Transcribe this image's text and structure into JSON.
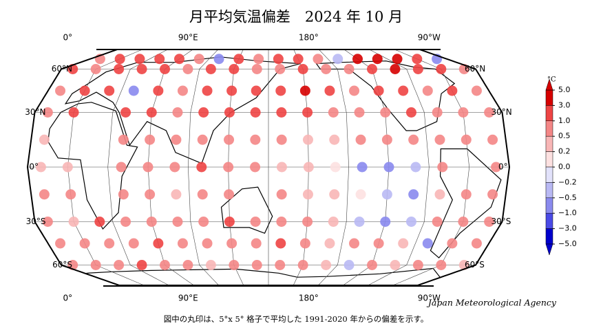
{
  "title": "月平均気温偏差　2024 年 10 月",
  "lon_ticks": [
    {
      "value": 0,
      "label": "0°"
    },
    {
      "value": 90,
      "label": "90°E"
    },
    {
      "value": 180,
      "label": "180°"
    },
    {
      "value": -90,
      "label": "90°W"
    }
  ],
  "lat_ticks": [
    {
      "value": 60,
      "label": "60°N"
    },
    {
      "value": 30,
      "label": "30°N"
    },
    {
      "value": 0,
      "label": "0°"
    },
    {
      "value": -30,
      "label": "30°S"
    },
    {
      "value": -60,
      "label": "60°S"
    }
  ],
  "colorbar": {
    "unit": "°C",
    "ticks": [
      {
        "value": 5,
        "label": "5.0"
      },
      {
        "value": 3,
        "label": "3.0"
      },
      {
        "value": 1,
        "label": "1.0"
      },
      {
        "value": 0.5,
        "label": "0.5"
      },
      {
        "value": 0.2,
        "label": "0.2"
      },
      {
        "value": 0,
        "label": "0.0"
      },
      {
        "value": -0.2,
        "label": "−0.2"
      },
      {
        "value": -0.5,
        "label": "−0.5"
      },
      {
        "value": -1,
        "label": "−1.0"
      },
      {
        "value": -3,
        "label": "−3.0"
      },
      {
        "value": -5,
        "label": "−5.0"
      }
    ],
    "colors": [
      "#d60000",
      "#ee4444",
      "#f48686",
      "#f8b6b6",
      "#fde1e1",
      "#e2e2fb",
      "#b9b9f4",
      "#8a8aee",
      "#4a4ae6",
      "#0000cc"
    ]
  },
  "anomalies": {
    "lats": [
      75,
      60,
      45,
      30,
      15,
      0,
      -15,
      -30,
      -45,
      -60
    ],
    "lons": [
      -20,
      0,
      20,
      40,
      60,
      80,
      100,
      120,
      140,
      160,
      180,
      200,
      220,
      240,
      260,
      280,
      300,
      320
    ],
    "values": [
      [
        0.5,
        1.0,
        1.0,
        1.0,
        1.0,
        0.5,
        -0.5,
        1.0,
        0.5,
        1.0,
        1.0,
        0.5,
        -0.2,
        3.0,
        3.0,
        3.0,
        1.0,
        -0.5
      ],
      [
        1.0,
        0.5,
        1.0,
        1.0,
        1.0,
        0.5,
        1.0,
        1.0,
        0.5,
        0.5,
        1.0,
        0.5,
        0.5,
        1.0,
        3.0,
        1.0,
        1.0,
        0.5
      ],
      [
        0.5,
        1.0,
        1.0,
        -0.5,
        1.0,
        0.5,
        1.0,
        1.0,
        1.0,
        1.0,
        3.0,
        1.0,
        0.5,
        1.0,
        1.0,
        0.5,
        1.0,
        0.5
      ],
      [
        0.5,
        1.0,
        null,
        1.0,
        1.0,
        0.5,
        1.0,
        1.0,
        1.0,
        1.0,
        1.0,
        0.5,
        0.5,
        0.5,
        1.0,
        0.5,
        0.5,
        0.5
      ],
      [
        0.2,
        null,
        null,
        0.5,
        0.5,
        0.5,
        0.5,
        0.5,
        0.5,
        0.5,
        0.2,
        0.2,
        0.5,
        0.5,
        0.5,
        0.5,
        0.5,
        0.5
      ],
      [
        0.2,
        0.2,
        null,
        0.5,
        0.5,
        0.5,
        1.0,
        0.5,
        0.5,
        0.2,
        0.2,
        0.0,
        -0.5,
        -0.5,
        -0.2,
        0.5,
        null,
        0.5
      ],
      [
        0.5,
        0.5,
        null,
        0.5,
        0.5,
        0.2,
        0.5,
        0.5,
        null,
        0.5,
        0.2,
        0.2,
        0.0,
        -0.2,
        -0.5,
        0.2,
        0.5,
        0.5
      ],
      [
        0.5,
        0.2,
        1.0,
        0.5,
        0.5,
        0.5,
        0.5,
        1.0,
        0.5,
        0.5,
        0.5,
        0.2,
        -0.2,
        -0.5,
        -0.2,
        0.5,
        0.5,
        0.5
      ],
      [
        0.5,
        0.5,
        0.5,
        0.5,
        1.0,
        0.5,
        0.5,
        0.5,
        0.5,
        1.0,
        0.5,
        0.2,
        0.5,
        0.5,
        0.2,
        -0.5,
        0.5,
        0.5
      ],
      [
        0.5,
        0.5,
        0.5,
        1.0,
        0.5,
        0.5,
        0.2,
        0.5,
        0.5,
        0.5,
        0.5,
        0.2,
        -0.2,
        0.5,
        0.2,
        0.5,
        0.5,
        0.2
      ]
    ]
  },
  "credit": "Japan Meteorological Agency",
  "footnote": "図中の丸印は、5°x 5° 格子で平均した 1991-2020 年からの偏差を示す。"
}
